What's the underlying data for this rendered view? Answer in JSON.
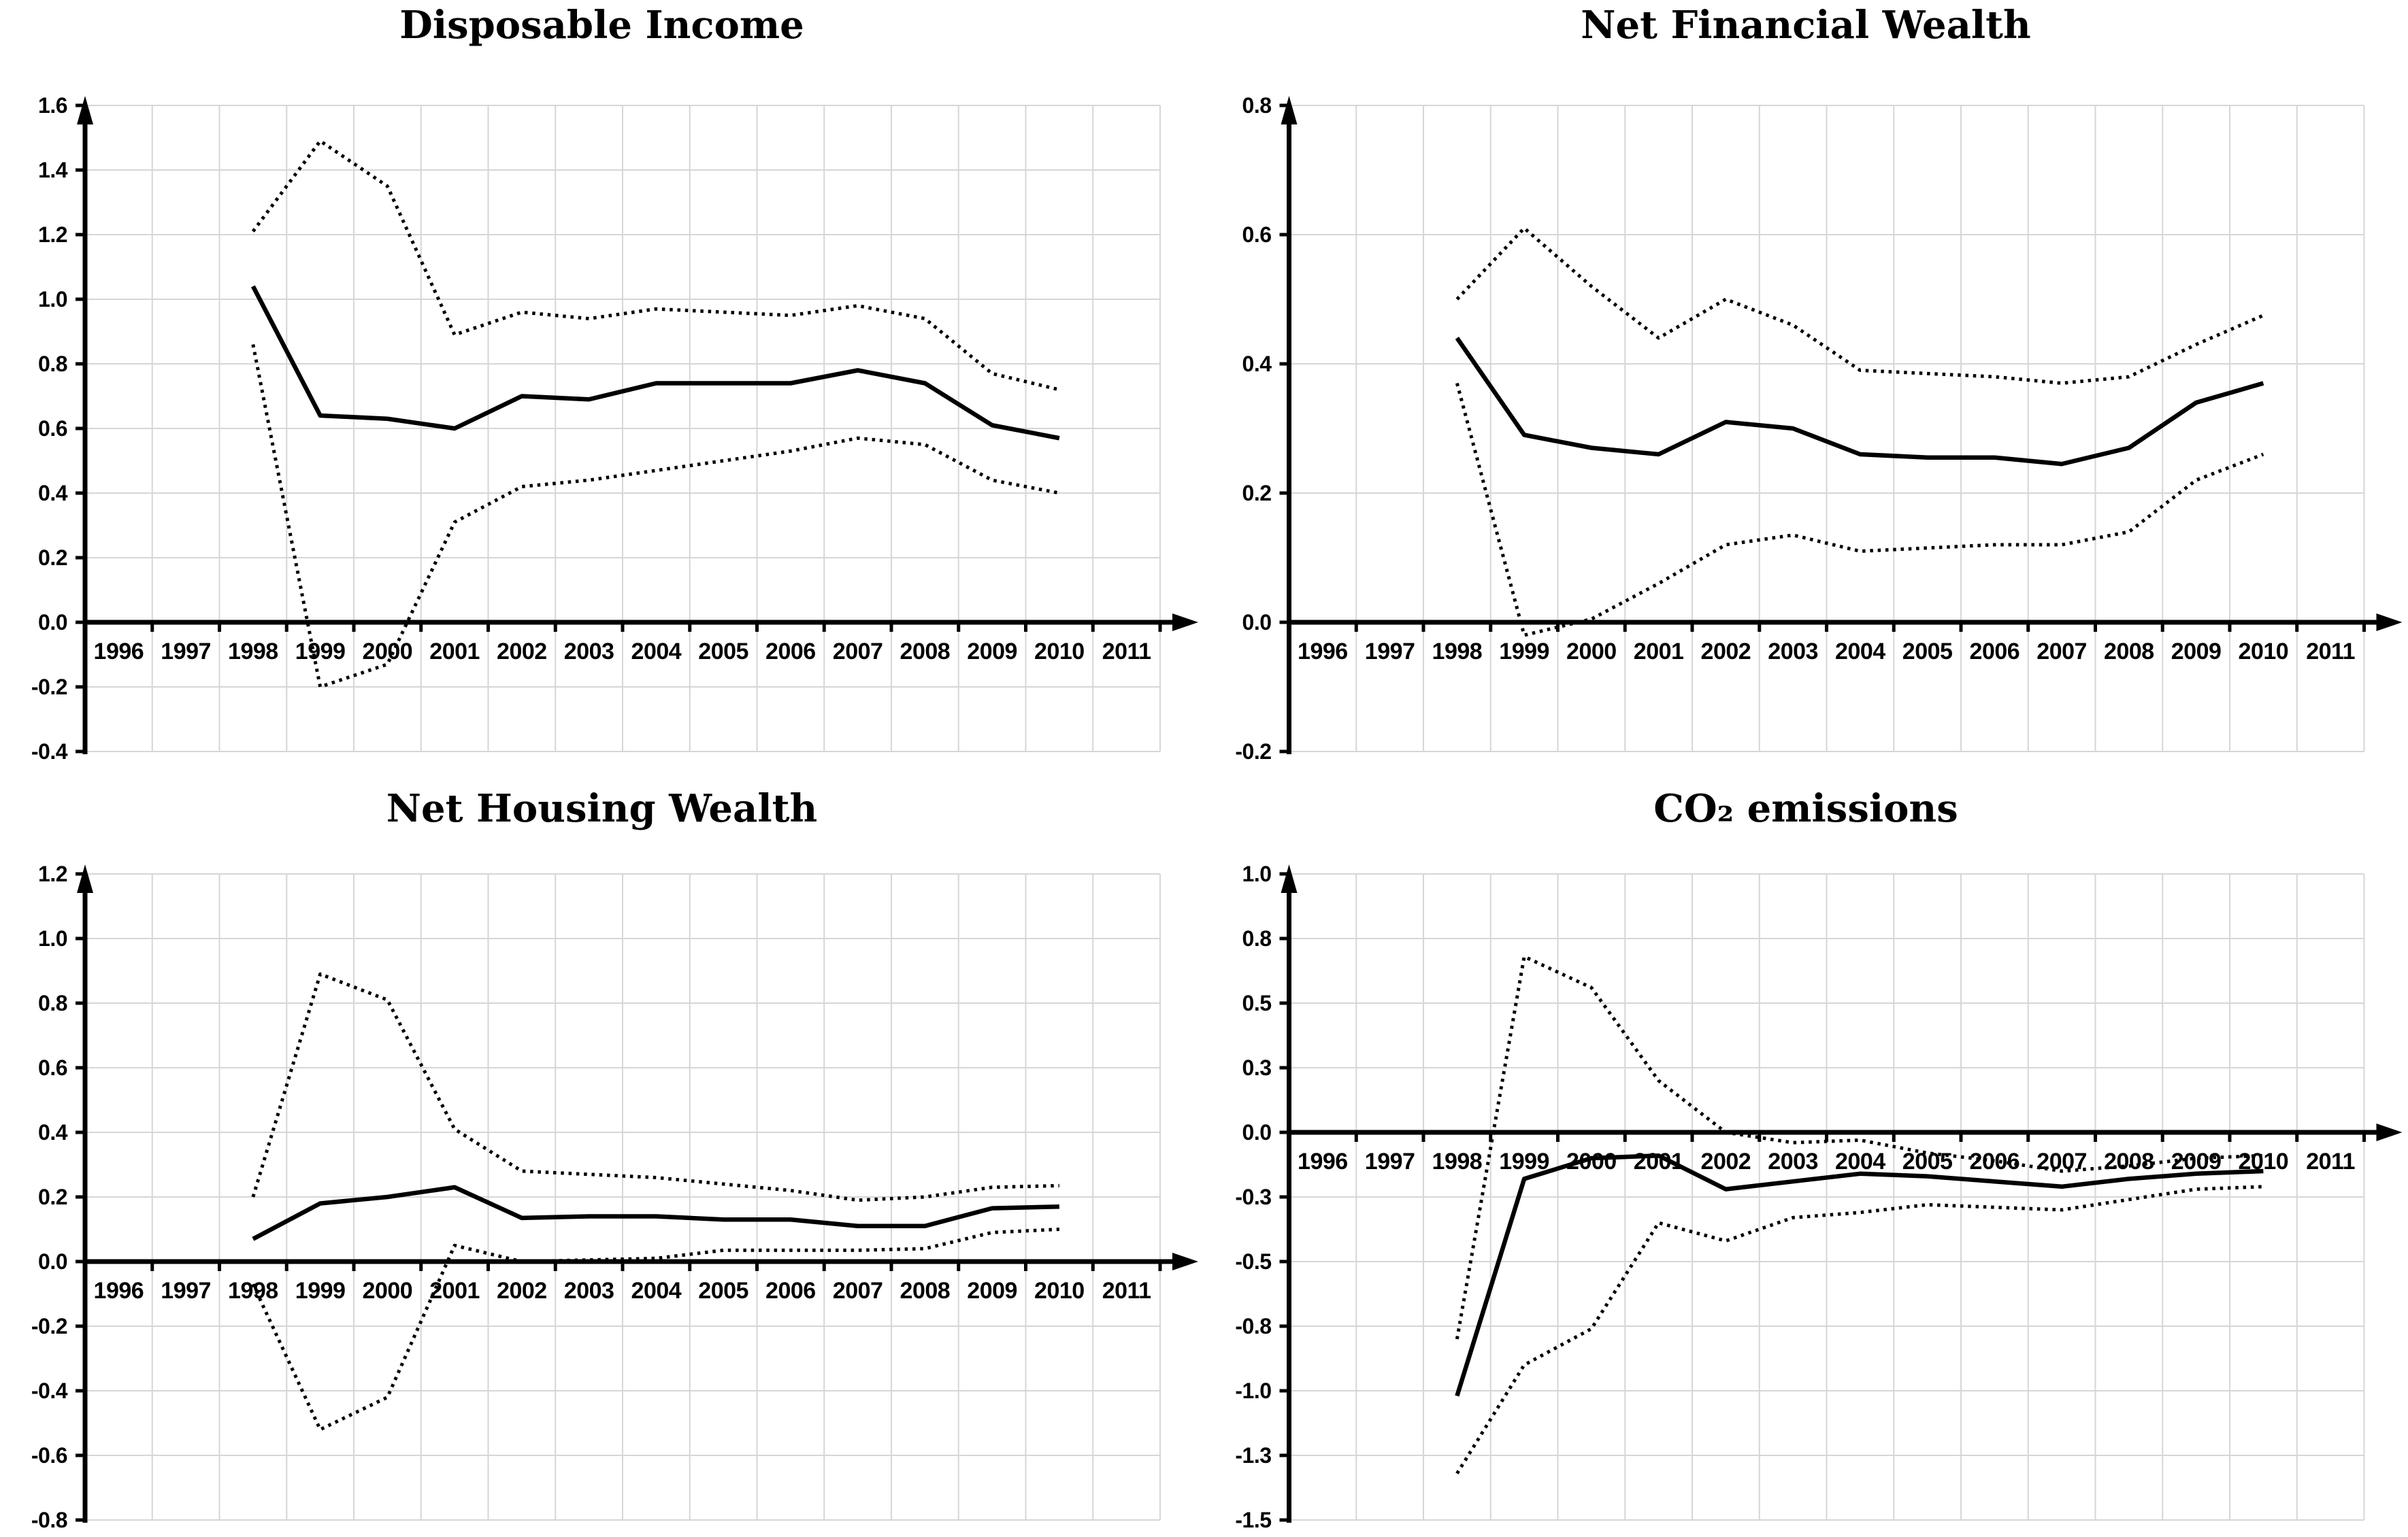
{
  "figure": {
    "layout": "2x2 grid of line charts",
    "background": "#ffffff",
    "legend": "none",
    "line_meaning": {
      "solid": "central estimate",
      "dotted": "confidence band"
    }
  },
  "colors": {
    "line": "#000000",
    "grid": "#d6d6d6",
    "text": "#000000",
    "background": "#ffffff"
  },
  "chart_data": [
    {
      "type": "line",
      "title": "Disposable Income",
      "categories": [
        "1996",
        "1997",
        "1998",
        "1999",
        "2000",
        "2001",
        "2002",
        "2003",
        "2004",
        "2005",
        "2006",
        "2007",
        "2008",
        "2009",
        "2010",
        "2011"
      ],
      "data_years": [
        1998,
        1999,
        2000,
        2001,
        2002,
        2003,
        2004,
        2005,
        2006,
        2007,
        2008,
        2009,
        2010
      ],
      "ylim": [
        -0.4,
        1.6
      ],
      "ytick_values": [
        1.6,
        1.4,
        1.2,
        1.0,
        0.8,
        0.6,
        0.4,
        0.2,
        0.0,
        -0.2,
        -0.4
      ],
      "ytick_labels": [
        "1.6",
        "1.4",
        "1.2",
        "1.0",
        "0.8",
        "0.6",
        "0.4",
        "0.2",
        "0.0",
        "-0.2",
        "-0.4"
      ],
      "grid": true,
      "legend": "none",
      "series": [
        {
          "name": "central estimate",
          "style": "solid",
          "values": [
            1.04,
            0.64,
            0.63,
            0.6,
            0.7,
            0.69,
            0.74,
            0.74,
            0.74,
            0.78,
            0.74,
            0.61,
            0.57
          ]
        },
        {
          "name": "upper confidence band",
          "style": "dotted",
          "values": [
            1.21,
            1.49,
            1.35,
            0.89,
            0.96,
            0.94,
            0.97,
            0.96,
            0.95,
            0.98,
            0.94,
            0.77,
            0.72
          ]
        },
        {
          "name": "lower confidence band",
          "style": "dotted",
          "values": [
            0.86,
            -0.2,
            -0.13,
            0.31,
            0.42,
            0.44,
            0.47,
            0.5,
            0.53,
            0.57,
            0.55,
            0.44,
            0.4
          ]
        }
      ]
    },
    {
      "type": "line",
      "title": "Net Financial Wealth",
      "categories": [
        "1996",
        "1997",
        "1998",
        "1999",
        "2000",
        "2001",
        "2002",
        "2003",
        "2004",
        "2005",
        "2006",
        "2007",
        "2008",
        "2009",
        "2010",
        "2011"
      ],
      "data_years": [
        1998,
        1999,
        2000,
        2001,
        2002,
        2003,
        2004,
        2005,
        2006,
        2007,
        2008,
        2009,
        2010
      ],
      "ylim": [
        -0.2,
        0.8
      ],
      "ytick_values": [
        0.8,
        0.6,
        0.4,
        0.2,
        0.0,
        -0.2
      ],
      "ytick_labels": [
        "0.8",
        "0.6",
        "0.4",
        "0.2",
        "0.0",
        "-0.2"
      ],
      "grid": true,
      "legend": "none",
      "series": [
        {
          "name": "central estimate",
          "style": "solid",
          "values": [
            0.44,
            0.29,
            0.27,
            0.26,
            0.31,
            0.3,
            0.26,
            0.255,
            0.255,
            0.245,
            0.27,
            0.34,
            0.37
          ]
        },
        {
          "name": "upper confidence band",
          "style": "dotted",
          "values": [
            0.5,
            0.61,
            0.52,
            0.44,
            0.5,
            0.46,
            0.39,
            0.385,
            0.38,
            0.37,
            0.38,
            0.43,
            0.475
          ]
        },
        {
          "name": "lower confidence band",
          "style": "dotted",
          "values": [
            0.37,
            -0.02,
            0.005,
            0.06,
            0.12,
            0.135,
            0.11,
            0.115,
            0.12,
            0.12,
            0.14,
            0.22,
            0.26
          ]
        }
      ]
    },
    {
      "type": "line",
      "title": "Net Housing Wealth",
      "categories": [
        "1996",
        "1997",
        "1998",
        "1999",
        "2000",
        "2001",
        "2002",
        "2003",
        "2004",
        "2005",
        "2006",
        "2007",
        "2008",
        "2009",
        "2010",
        "2011"
      ],
      "data_years": [
        1998,
        1999,
        2000,
        2001,
        2002,
        2003,
        2004,
        2005,
        2006,
        2007,
        2008,
        2009,
        2010
      ],
      "ylim": [
        -0.8,
        1.2
      ],
      "ytick_values": [
        1.2,
        1.0,
        0.8,
        0.6,
        0.4,
        0.2,
        0.0,
        -0.2,
        -0.4,
        -0.6,
        -0.8
      ],
      "ytick_labels": [
        "1.2",
        "1.0",
        "0.8",
        "0.6",
        "0.4",
        "0.2",
        "0.0",
        "-0.2",
        "-0.4",
        "-0.6",
        "-0.8"
      ],
      "grid": true,
      "legend": "none",
      "series": [
        {
          "name": "central estimate",
          "style": "solid",
          "values": [
            0.07,
            0.18,
            0.2,
            0.23,
            0.135,
            0.14,
            0.14,
            0.13,
            0.13,
            0.11,
            0.11,
            0.165,
            0.17
          ]
        },
        {
          "name": "upper confidence band",
          "style": "dotted",
          "values": [
            0.2,
            0.89,
            0.81,
            0.41,
            0.28,
            0.27,
            0.26,
            0.24,
            0.22,
            0.19,
            0.2,
            0.23,
            0.235
          ]
        },
        {
          "name": "lower confidence band",
          "style": "dotted",
          "values": [
            -0.07,
            -0.52,
            -0.42,
            0.05,
            0.0,
            0.005,
            0.01,
            0.035,
            0.035,
            0.035,
            0.04,
            0.09,
            0.1
          ]
        }
      ]
    },
    {
      "type": "line",
      "title": "CO₂ emissions",
      "categories": [
        "1996",
        "1997",
        "1998",
        "1999",
        "2000",
        "2001",
        "2002",
        "2003",
        "2004",
        "2005",
        "2006",
        "2007",
        "2008",
        "2009",
        "2010",
        "2011"
      ],
      "data_years": [
        1998,
        1999,
        2000,
        2001,
        2002,
        2003,
        2004,
        2005,
        2006,
        2007,
        2008,
        2009,
        2010
      ],
      "ylim": [
        -1.5,
        1.0
      ],
      "ytick_values": [
        1.0,
        0.75,
        0.5,
        0.25,
        0.0,
        -0.25,
        -0.5,
        -0.75,
        -1.0,
        -1.25,
        -1.5
      ],
      "ytick_labels": [
        "1.0",
        "0.8",
        "0.5",
        "0.3",
        "0.0",
        "-0.3",
        "-0.5",
        "-0.8",
        "-1.0",
        "-1.3",
        "-1.5"
      ],
      "grid": true,
      "legend": "none",
      "series": [
        {
          "name": "central estimate",
          "style": "solid",
          "values": [
            -1.02,
            -0.18,
            -0.1,
            -0.09,
            -0.22,
            -0.19,
            -0.16,
            -0.17,
            -0.19,
            -0.21,
            -0.18,
            -0.16,
            -0.15
          ]
        },
        {
          "name": "upper confidence band",
          "style": "dotted",
          "values": [
            -0.8,
            0.68,
            0.56,
            0.2,
            0.0,
            -0.04,
            -0.03,
            -0.08,
            -0.11,
            -0.15,
            -0.13,
            -0.1,
            -0.09
          ]
        },
        {
          "name": "lower confidence band",
          "style": "dotted",
          "values": [
            -1.32,
            -0.9,
            -0.76,
            -0.35,
            -0.42,
            -0.33,
            -0.31,
            -0.28,
            -0.29,
            -0.3,
            -0.26,
            -0.22,
            -0.21
          ]
        }
      ]
    }
  ]
}
